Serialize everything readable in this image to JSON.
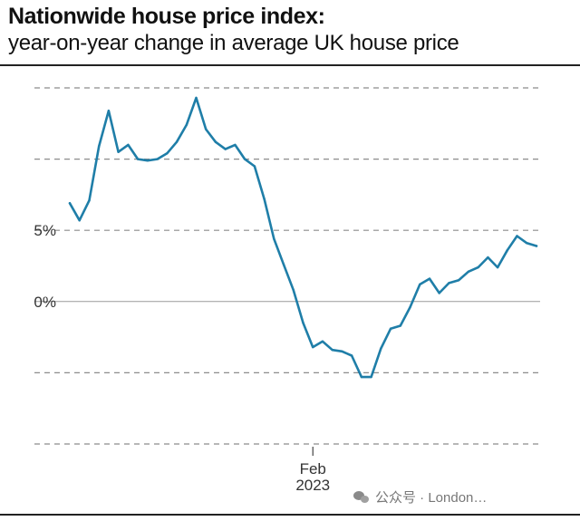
{
  "header": {
    "title": "Nationwide house price index:",
    "subtitle": "year-on-year change in average UK house price"
  },
  "watermark": {
    "text": "公众号 · London…"
  },
  "colors": {
    "line": "#1f7ea8",
    "grid": "#8c8c8c",
    "zero_line": "#9a9a9a",
    "text": "#111111"
  },
  "chart_data": {
    "type": "line",
    "title": "Nationwide house price index:",
    "subtitle": "year-on-year change in average UK house price",
    "xlabel": "",
    "ylabel": "",
    "ylim": [
      -10,
      15
    ],
    "y_ticks": [
      {
        "value": 15,
        "label": ""
      },
      {
        "value": 10,
        "label": ""
      },
      {
        "value": 5,
        "label": "5%"
      },
      {
        "value": 0,
        "label": "0%"
      },
      {
        "value": -5,
        "label": ""
      },
      {
        "value": -10,
        "label": ""
      }
    ],
    "x_annotation": {
      "index": 25,
      "label_line1": "Feb",
      "label_line2": "2023"
    },
    "grid": true,
    "series": [
      {
        "values": [
          6.9,
          5.7,
          7.1,
          10.9,
          13.4,
          10.5,
          11.0,
          10.0,
          9.9,
          10.0,
          10.4,
          11.2,
          12.4,
          14.3,
          12.1,
          11.2,
          10.7,
          11.0,
          10.0,
          9.5,
          7.2,
          4.4,
          2.6,
          0.8,
          -1.5,
          -3.2,
          -2.8,
          -3.4,
          -3.5,
          -3.8,
          -5.3,
          -5.3,
          -3.3,
          -1.9,
          -1.7,
          -0.4,
          1.2,
          1.6,
          0.6,
          1.3,
          1.5,
          2.1,
          2.4,
          3.1,
          2.4,
          3.6,
          4.6,
          4.1,
          3.9
        ]
      }
    ]
  }
}
